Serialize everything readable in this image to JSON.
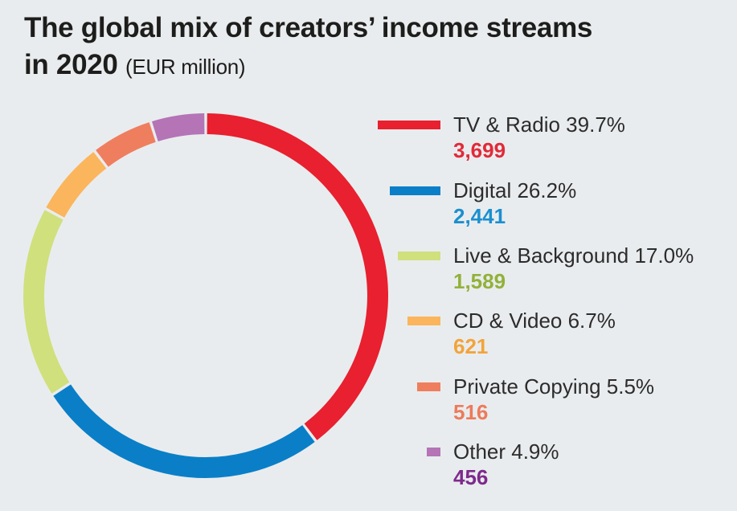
{
  "title": {
    "line1": "The global mix of creators’ income streams",
    "line2_main": "in 2020",
    "line2_unit": "(EUR million)"
  },
  "chart_data": {
    "type": "donut",
    "title": "The global mix of creators’ income streams in 2020",
    "unit": "EUR million",
    "series": [
      {
        "name": "TV & Radio",
        "percent_label": "39.7%",
        "value": 3699,
        "value_label": "3,699",
        "color": "#e8202f",
        "text_color": "#e12a38"
      },
      {
        "name": "Digital",
        "percent_label": "26.2%",
        "value": 2441,
        "value_label": "2,441",
        "color": "#0a7fc8",
        "text_color": "#1a8fd0"
      },
      {
        "name": "Live & Background",
        "percent_label": "17.0%",
        "value": 1589,
        "value_label": "1,589",
        "color": "#cfe07d",
        "text_color": "#92b13a"
      },
      {
        "name": "CD & Video",
        "percent_label": "6.7%",
        "value": 621,
        "value_label": "621",
        "color": "#fbb55c",
        "text_color": "#f2a43a"
      },
      {
        "name": "Private Copying",
        "percent_label": "5.5%",
        "value": 516,
        "value_label": "516",
        "color": "#ef7e5e",
        "text_color": "#ec7b5b"
      },
      {
        "name": "Other",
        "percent_label": "4.9%",
        "value": 456,
        "value_label": "456",
        "color": "#b474b6",
        "text_color": "#7d2a8c"
      }
    ],
    "legend_position": "right"
  }
}
